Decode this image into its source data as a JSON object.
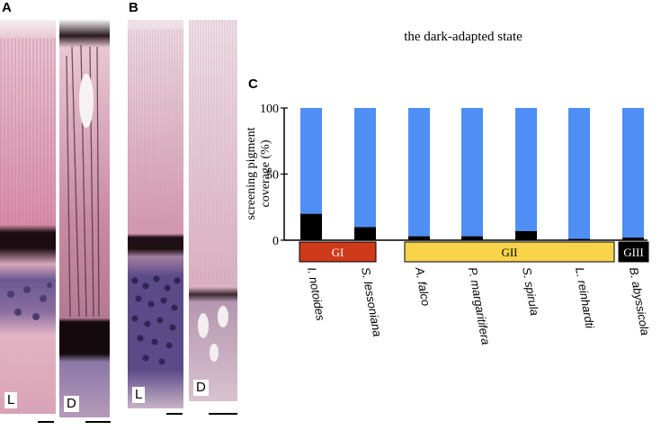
{
  "panels": {
    "A": {
      "letter": "A",
      "left_label": "L",
      "right_label": "D"
    },
    "B": {
      "letter": "B",
      "left_label": "L",
      "right_label": "D"
    },
    "C": {
      "letter": "C"
    }
  },
  "colors": {
    "retina_pink": "#e4a9bd",
    "pigment_band": "#1a0f12",
    "nuclei_purple": "#5a4880",
    "coverage_black": "#000000",
    "uncovered_blue": "#4f8ef5",
    "group_GI": "#cf3a1a",
    "group_GII": "#f7d44a",
    "group_GIII": "#000000"
  },
  "chart_data": {
    "type": "bar",
    "title": "the dark-adapted state",
    "xlabel": "",
    "ylabel": "screening pigment coverage (%)",
    "ylabel_lines": [
      "screening pigment",
      "coverage (%)"
    ],
    "ylim": [
      0,
      100
    ],
    "yticks": [
      0,
      50,
      100
    ],
    "categories": [
      "I. notoides",
      "S. lessoniana",
      "A. falco",
      "P. margaritifera",
      "S. spirula",
      "L. reinhardti",
      "B. abyssicola"
    ],
    "stacked": true,
    "series": [
      {
        "values": [
          20,
          10,
          3,
          3,
          7,
          1,
          2
        ],
        "color": "#000000"
      },
      {
        "values": [
          80,
          90,
          97,
          97,
          93,
          99,
          98
        ],
        "color": "#4f8ef5"
      }
    ],
    "groups": [
      {
        "label": "GI",
        "members": [
          "I. notoides",
          "S. lessoniana"
        ],
        "color": "#cf3a1a",
        "text_color": "#ffffff"
      },
      {
        "label": "GII",
        "members": [
          "A. falco",
          "P. margaritifera",
          "S. spirula",
          "L. reinhardti"
        ],
        "color": "#f7d44a",
        "text_color": "#000000"
      },
      {
        "label": "GIII",
        "members": [
          "B. abyssicola"
        ],
        "color": "#000000",
        "text_color": "#ffffff"
      }
    ]
  }
}
